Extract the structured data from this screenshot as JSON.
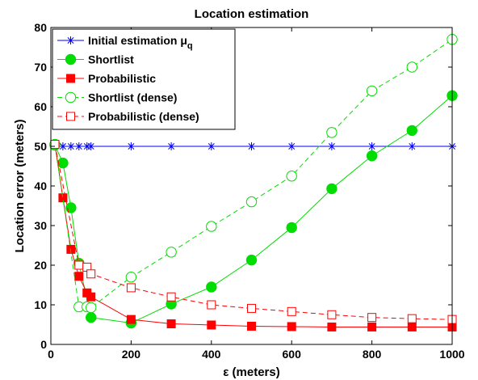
{
  "chart_data": {
    "type": "line",
    "title": "Location estimation",
    "xlabel": "ε (meters)",
    "ylabel": "Location error (meters)",
    "xlim": [
      0,
      1000
    ],
    "ylim": [
      0,
      80
    ],
    "xticks": [
      0,
      200,
      400,
      600,
      800,
      1000
    ],
    "yticks": [
      0,
      10,
      20,
      30,
      40,
      50,
      60,
      70,
      80
    ],
    "grid": false,
    "legend_position": "top-left",
    "series": [
      {
        "name": "Initial estimation μq",
        "legend_main": "Initial estimation μ",
        "legend_sub": "q",
        "color": "#0000ff",
        "marker": "asterisk",
        "line": "solid",
        "x": [
          10,
          30,
          50,
          70,
          90,
          100,
          200,
          300,
          400,
          500,
          600,
          700,
          800,
          900,
          1000
        ],
        "y": [
          50,
          50,
          50,
          50,
          50,
          50,
          50,
          50,
          50,
          50,
          50,
          50,
          50,
          50,
          50
        ]
      },
      {
        "name": "Shortlist",
        "color": "#00dd00",
        "marker": "circle-filled",
        "line": "solid",
        "x": [
          10,
          30,
          50,
          70,
          100,
          200,
          300,
          400,
          500,
          600,
          700,
          800,
          900,
          1000
        ],
        "y": [
          50.3,
          45.8,
          34.5,
          20.5,
          6.8,
          5.4,
          10.2,
          14.5,
          21.3,
          29.5,
          39.3,
          47.6,
          54,
          62.8
        ]
      },
      {
        "name": "Probabilistic",
        "color": "#ff0000",
        "marker": "square-filled",
        "line": "solid",
        "x": [
          10,
          30,
          50,
          70,
          90,
          100,
          200,
          300,
          400,
          500,
          600,
          700,
          800,
          900,
          1000
        ],
        "y": [
          50.5,
          37,
          24,
          17.2,
          13,
          12,
          6.3,
          5.2,
          4.9,
          4.6,
          4.5,
          4.4,
          4.4,
          4.4,
          4.4
        ]
      },
      {
        "name": "Shortlist (dense)",
        "color": "#00dd00",
        "marker": "circle-open",
        "line": "dashed",
        "x": [
          10,
          70,
          90,
          100,
          200,
          300,
          400,
          500,
          600,
          700,
          800,
          900,
          1000
        ],
        "y": [
          50.5,
          9.5,
          9.5,
          9.3,
          17,
          23.3,
          29.8,
          36,
          42.5,
          53.5,
          64,
          70,
          77
        ]
      },
      {
        "name": "Probabilistic (dense)",
        "color": "#ff0000",
        "marker": "square-open",
        "line": "dashed",
        "x": [
          10,
          70,
          90,
          100,
          200,
          300,
          400,
          500,
          600,
          700,
          800,
          900,
          1000
        ],
        "y": [
          50.5,
          20,
          19.5,
          17.8,
          14.3,
          12,
          10,
          9.1,
          8.3,
          7.5,
          6.8,
          6.5,
          6.3
        ]
      }
    ]
  }
}
